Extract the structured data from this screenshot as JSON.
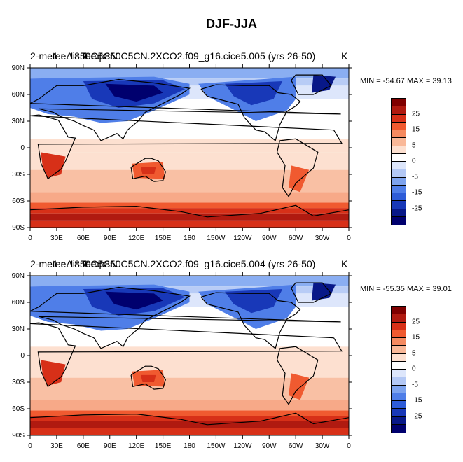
{
  "title": "DJF-JJA",
  "panels": [
    {
      "left_title": "2-meter Air Temp",
      "overlay_title": "1.e.1850C5CN",
      "center_title": "1.e.1850C5CN.2XCO2.f09_g16.cice5.005 (yrs 26-50)",
      "units": "K",
      "minmax": "MIN = -54.67  MAX =  39.13"
    },
    {
      "left_title": "2-meter Air Temp",
      "overlay_title": "1.e.1850C5CN",
      "center_title": "1.e.1850C5CN.2XCO2.f09_g16.cice5.004 (yrs 26-50)",
      "units": "K",
      "minmax": "MIN = -55.35  MAX =  39.01"
    }
  ],
  "axes": {
    "lat_labels": [
      "90N",
      "60N",
      "30N",
      "0",
      "30S",
      "60S",
      "90S"
    ],
    "lon_labels": [
      "0",
      "30E",
      "60E",
      "90E",
      "120E",
      "150E",
      "180",
      "150W",
      "120W",
      "90W",
      "60W",
      "30W",
      "0"
    ]
  },
  "colorbar": {
    "labels": [
      "25",
      "15",
      "5",
      "0",
      "-5",
      "-15",
      "-25"
    ],
    "colors": [
      "#7f0000",
      "#b01a10",
      "#d73018",
      "#f05a30",
      "#f58a60",
      "#f9b898",
      "#fde0d0",
      "#ffffff",
      "#dde6fb",
      "#b3c8f5",
      "#7da3ee",
      "#4f7ee8",
      "#2e5cd8",
      "#1838b8",
      "#081888",
      "#00006e"
    ]
  }
}
